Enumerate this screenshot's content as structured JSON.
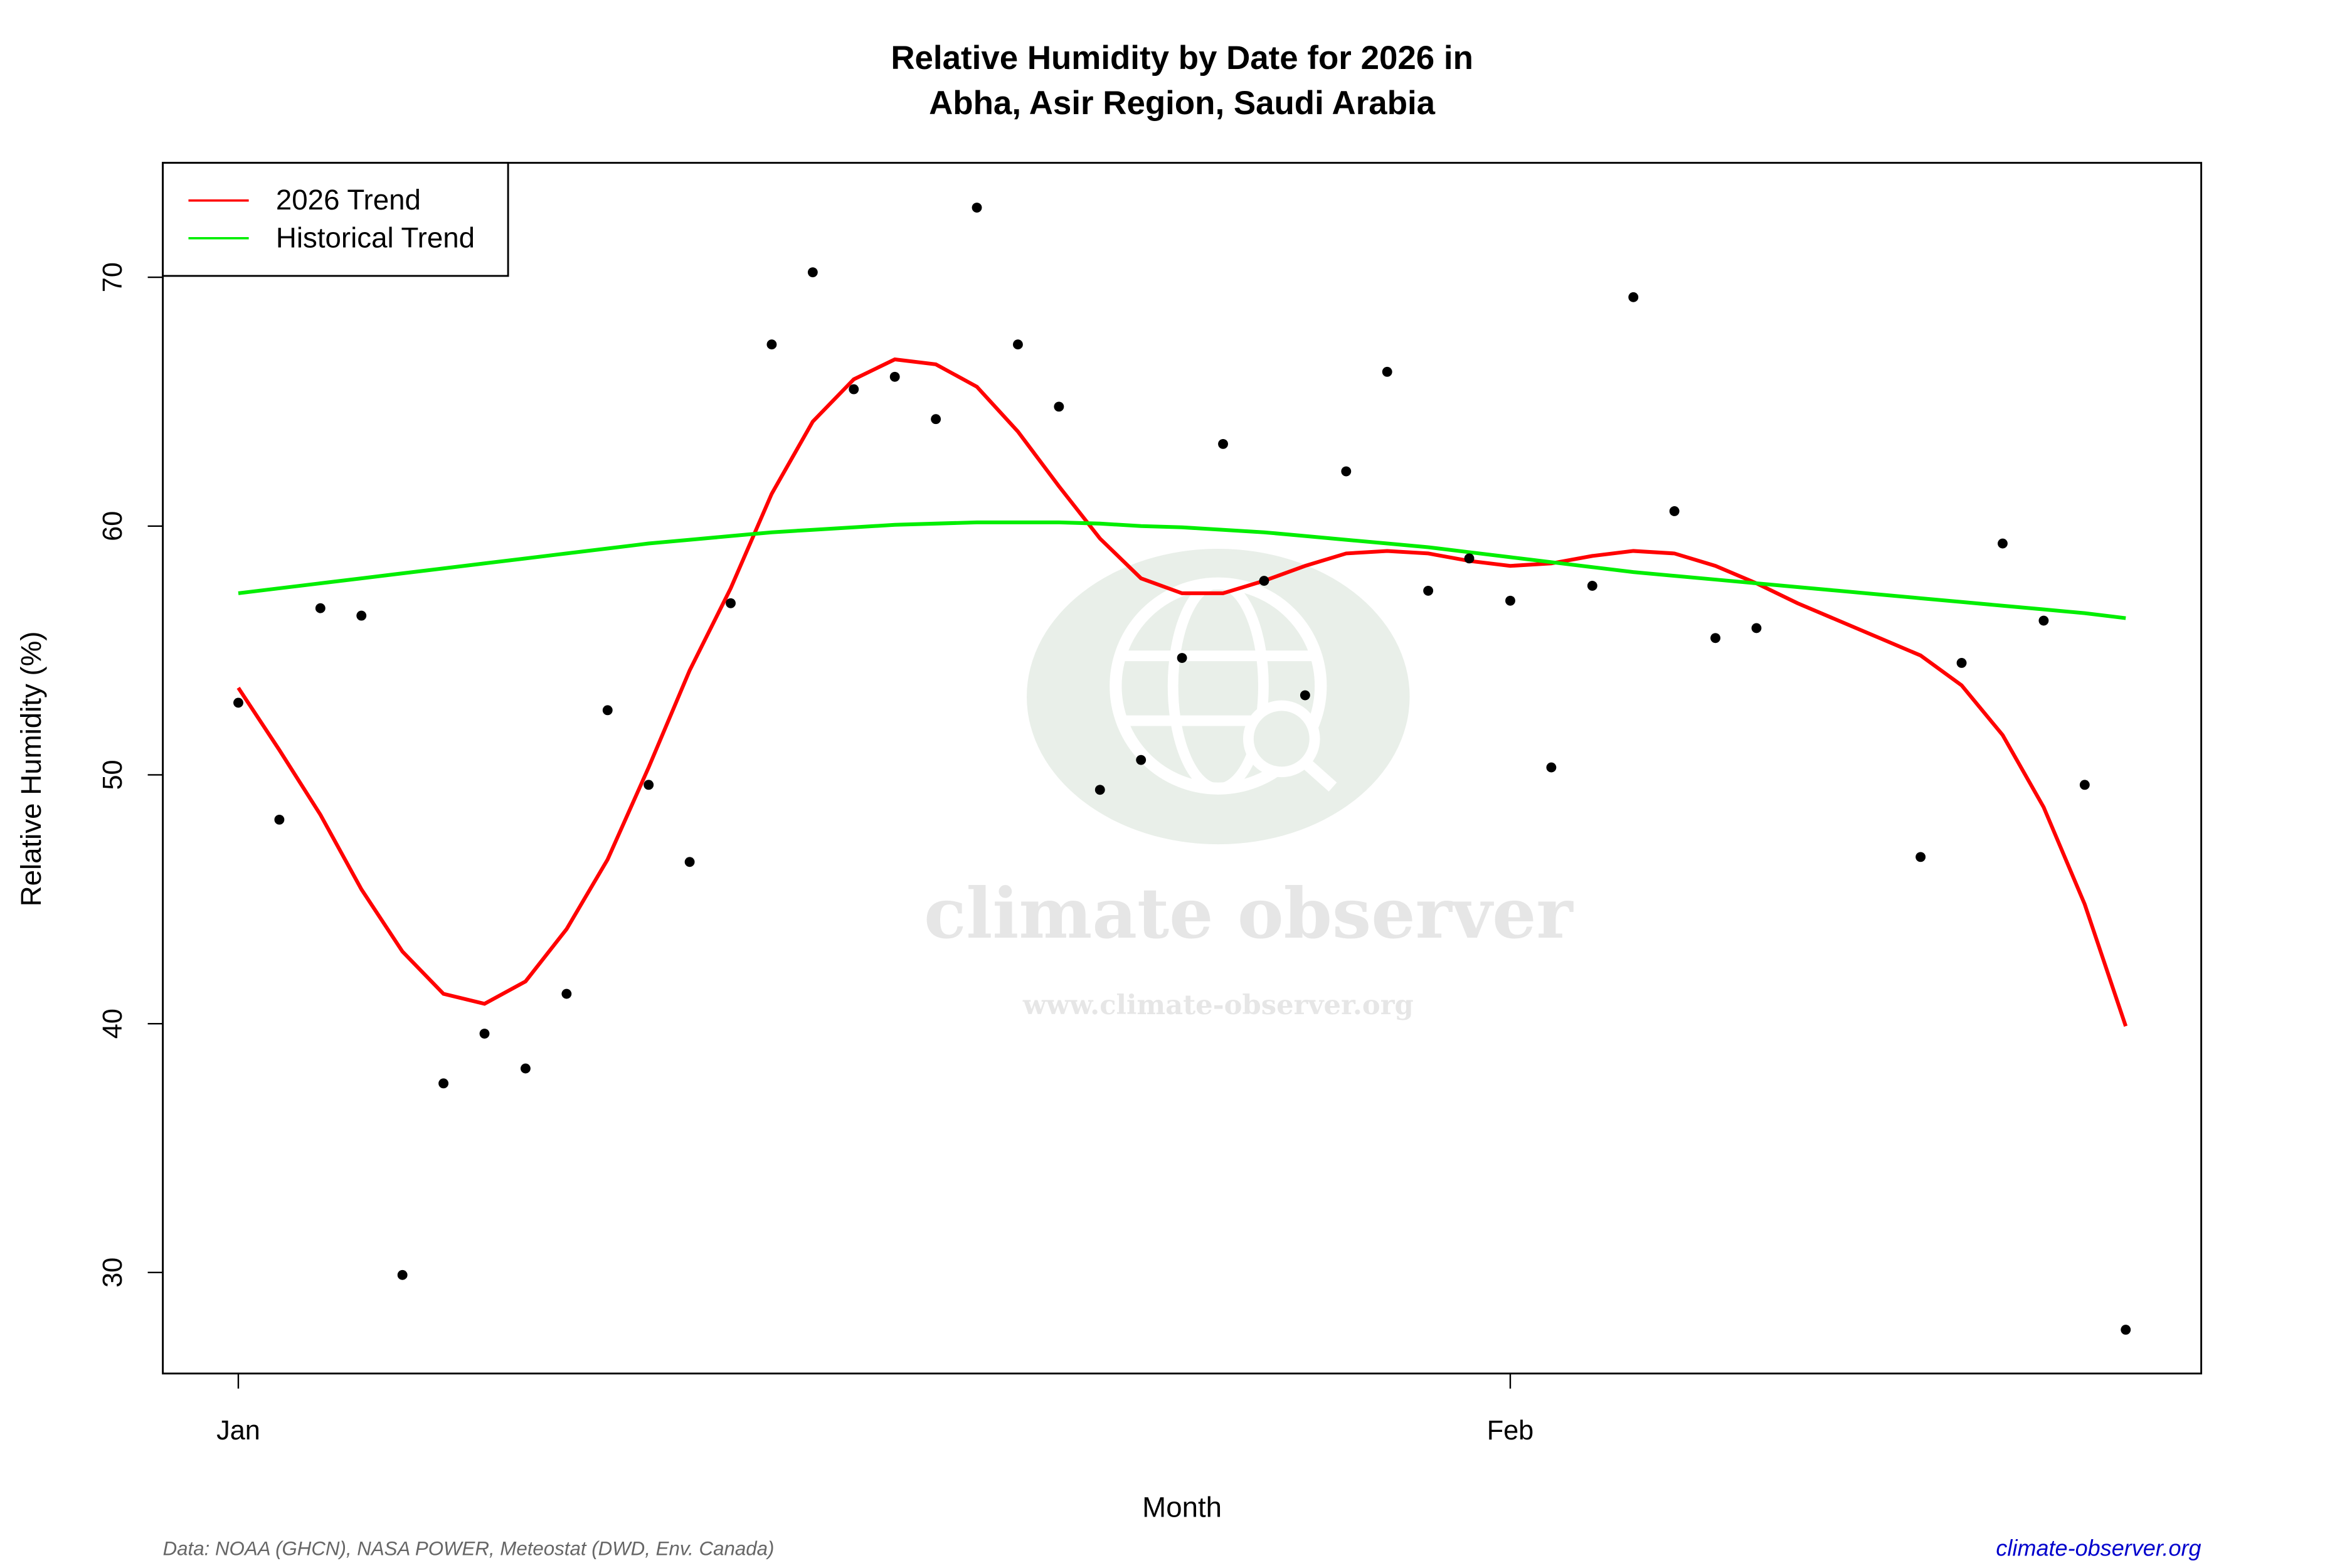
{
  "chart_data": {
    "type": "line",
    "title": "Relative Humidity by Date for 2026 in",
    "subtitle": "Abha, Asir Region, Saudi Arabia",
    "x_label": "Month",
    "y_label": "Relative Humidity (%)",
    "x": [
      1,
      2,
      3,
      4,
      5,
      6,
      7,
      8,
      9,
      10,
      11,
      12,
      13,
      14,
      15,
      16,
      17,
      18,
      19,
      20,
      21,
      22,
      23,
      24,
      25,
      26,
      27,
      28,
      29,
      30,
      31,
      32,
      33,
      34,
      35,
      36,
      37,
      38,
      39,
      40,
      41,
      42,
      43,
      44,
      45,
      46,
      47
    ],
    "xlim": [
      -0.84,
      48.84
    ],
    "xticks": [
      {
        "value": 1,
        "label": "Jan"
      },
      {
        "value": 32,
        "label": "Feb"
      }
    ],
    "ylim": [
      25.94,
      74.6
    ],
    "yticks": [
      30,
      40,
      50,
      60,
      70
    ],
    "legend": "topleft",
    "series": [
      {
        "style": "points",
        "color": "#000000",
        "values": [
          52.9,
          48.2,
          56.7,
          56.4,
          29.9,
          37.6,
          39.6,
          38.2,
          41.2,
          52.6,
          49.6,
          46.5,
          56.9,
          67.3,
          70.2,
          65.5,
          66.0,
          64.3,
          72.8,
          67.3,
          64.8,
          49.4,
          50.6,
          54.7,
          63.3,
          57.8,
          53.2,
          62.2,
          66.2,
          57.4,
          58.7,
          57.0,
          50.3,
          57.6,
          69.2,
          60.6,
          55.5,
          55.9,
          null,
          null,
          null,
          46.7,
          54.5,
          59.3,
          56.2,
          49.6,
          27.7
        ]
      },
      {
        "name": "2026 Trend",
        "style": "line",
        "color": "#ff0000",
        "values": [
          53.5,
          51.0,
          48.4,
          45.4,
          42.9,
          41.2,
          40.8,
          41.7,
          43.8,
          46.6,
          50.3,
          54.2,
          57.5,
          61.3,
          64.2,
          65.9,
          66.7,
          66.5,
          65.6,
          63.8,
          61.6,
          59.5,
          57.9,
          57.3,
          57.3,
          57.8,
          58.4,
          58.9,
          59.0,
          58.9,
          58.6,
          58.4,
          58.5,
          58.8,
          59.0,
          58.9,
          58.4,
          57.7,
          56.9,
          56.2,
          55.5,
          54.8,
          53.6,
          51.6,
          48.7,
          44.8,
          39.9
        ]
      },
      {
        "name": "Historical Trend",
        "style": "line",
        "color": "#00ee00",
        "values": [
          57.3,
          57.5,
          57.7,
          57.9,
          58.1,
          58.3,
          58.5,
          58.7,
          58.9,
          59.1,
          59.3,
          59.45,
          59.6,
          59.75,
          59.85,
          59.95,
          60.05,
          60.1,
          60.15,
          60.15,
          60.15,
          60.1,
          60.0,
          59.95,
          59.85,
          59.75,
          59.6,
          59.45,
          59.3,
          59.15,
          58.95,
          58.75,
          58.55,
          58.35,
          58.15,
          58.0,
          57.85,
          57.7,
          57.55,
          57.4,
          57.25,
          57.1,
          56.95,
          56.8,
          56.65,
          56.5,
          56.3
        ]
      }
    ],
    "watermark": "climate observer",
    "watermark_url": "www.climate-observer.org",
    "source": "Data: NOAA (GHCN), NASA POWER, Meteostat (DWD, Env. Canada)",
    "site": "climate-observer.org"
  }
}
